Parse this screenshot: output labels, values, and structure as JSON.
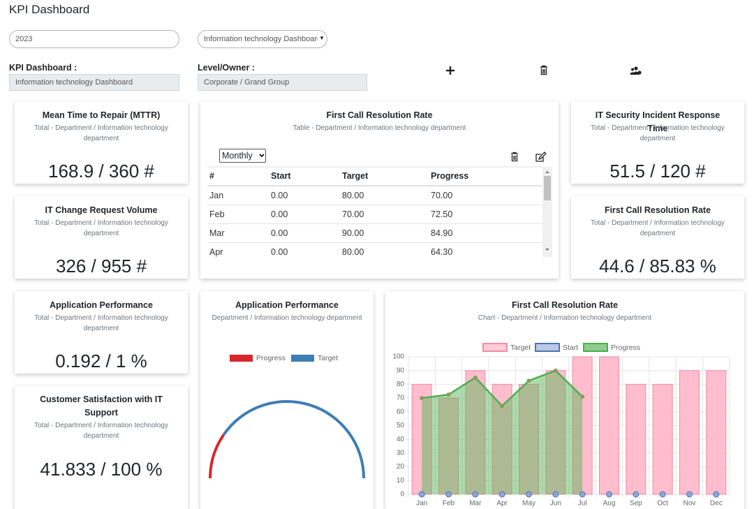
{
  "header": {
    "title": "KPI Dashboard"
  },
  "filters": {
    "year": "2023",
    "dashboard": "Information technology Dashboard"
  },
  "fields": [
    {
      "label": "KPI Dashboard :",
      "value": "Information technology Dashboard"
    },
    {
      "label": "Level/Owner :",
      "value": "Corporate / Grand Group"
    }
  ],
  "kpi_cards": [
    {
      "title": "Mean Time to Repair (MTTR)",
      "subtitle": "Total - Department / Information technology department",
      "value": "168.9 / 360 #"
    },
    {
      "title": "IT Change Request Volume",
      "subtitle": "Total - Department / Information technology department",
      "value": "326 / 955 #"
    },
    {
      "title": "Application Performance",
      "subtitle": "Total - Department / Information technology department",
      "value": "0.192 / 1 %"
    },
    {
      "title": "Customer Satisfaction with IT Support",
      "subtitle": "Total - Department / Information technology department",
      "value": "41.833 / 100 %"
    },
    {
      "title": "IT Security Incident Response Time",
      "subtitle": "Total - Department / Information technology department",
      "value": "51.5 / 120 #"
    },
    {
      "title": "First Call Resolution Rate",
      "subtitle": "Total - Department / Information technology department",
      "value": "44.6 / 85.83 %"
    }
  ],
  "table_card": {
    "title": "First Call Resolution Rate",
    "subtitle": "Table - Department / Information technology department",
    "period": "Monthly",
    "columns": [
      "#",
      "Start",
      "Target",
      "Progress"
    ],
    "rows": [
      [
        "Jan",
        "0.00",
        "80.00",
        "70.00"
      ],
      [
        "Feb",
        "0.00",
        "70.00",
        "72.50"
      ],
      [
        "Mar",
        "0.00",
        "90.00",
        "84.90"
      ],
      [
        "Apr",
        "0.00",
        "80.00",
        "64.30"
      ]
    ]
  },
  "gauge_card": {
    "title": "Application Performance",
    "subtitle": "Department / Information technology department",
    "series": [
      {
        "name": "Progress",
        "color": "#d9262c",
        "value": 0.192
      },
      {
        "name": "Target",
        "color": "#3d7eb5",
        "value": 1
      }
    ]
  },
  "chart_data": {
    "type": "bar",
    "title": "First Call Resolution Rate",
    "subtitle": "Chart - Department / Information technology department",
    "categories": [
      "Jan",
      "Feb",
      "Mar",
      "Apr",
      "May",
      "Jun",
      "Jul",
      "Aug",
      "Sep",
      "Oct",
      "Nov",
      "Dec"
    ],
    "series": [
      {
        "name": "Target",
        "type": "bar",
        "color": "#ffb6c8",
        "border": "#f28aa5",
        "values": [
          80,
          70,
          90,
          80,
          80,
          90,
          100,
          100,
          80,
          80,
          90,
          90
        ]
      },
      {
        "name": "Start",
        "type": "point",
        "color": "#8fa5d6",
        "border": "#4a77b0",
        "values": [
          0,
          0,
          0,
          0,
          0,
          0,
          0,
          0,
          0,
          0,
          0,
          0
        ]
      },
      {
        "name": "Progress",
        "type": "line",
        "color": "#5cb85c",
        "border": "#4caf50",
        "values": [
          70,
          72.5,
          84.9,
          64.3,
          82.6,
          90,
          71,
          null,
          null,
          null,
          null,
          null
        ]
      }
    ],
    "ylim": [
      0,
      100
    ],
    "yticks": [
      0,
      10,
      20,
      30,
      40,
      50,
      60,
      70,
      80,
      90,
      100
    ],
    "grid": true
  }
}
